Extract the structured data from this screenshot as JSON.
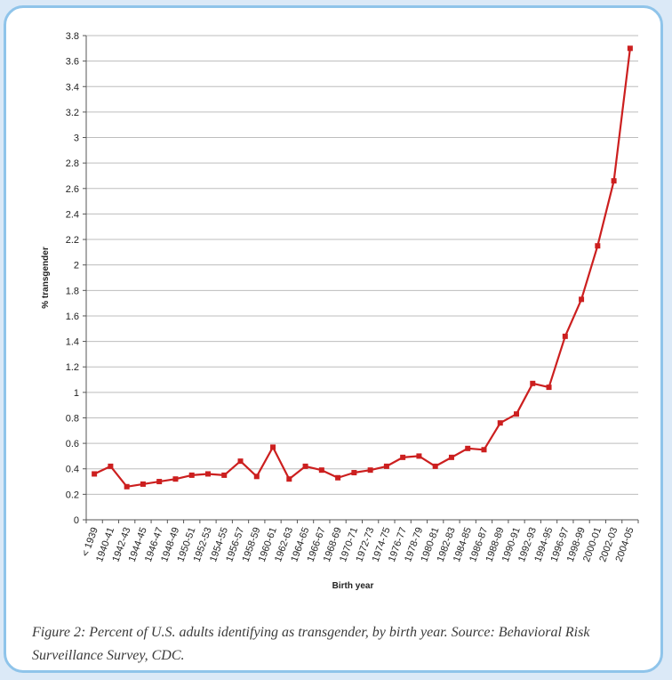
{
  "figure": {
    "caption": "Figure 2: Percent of U.S. adults identifying as transgender, by birth year. Source: Behavioral Risk Surveillance Survey, CDC."
  },
  "colors": {
    "series": "#cc1f1f",
    "grid": "#bdbdbd",
    "border": "#8fc4ea"
  },
  "chart_data": {
    "type": "line",
    "title": "",
    "xlabel": "Birth year",
    "ylabel": "% transgender",
    "ylim": [
      0,
      3.8
    ],
    "yticks": [
      0,
      0.2,
      0.4,
      0.6,
      0.8,
      1,
      1.2,
      1.4,
      1.6,
      1.8,
      2,
      2.2,
      2.4,
      2.6,
      2.8,
      3,
      3.2,
      3.4,
      3.6,
      3.8
    ],
    "grid": true,
    "legend": "none",
    "categories": [
      "< 1939",
      "1940-41",
      "1942-43",
      "1944-45",
      "1946-47",
      "1948-49",
      "1950-51",
      "1952-53",
      "1954-55",
      "1956-57",
      "1958-59",
      "1960-61",
      "1962-63",
      "1964-65",
      "1966-67",
      "1968-69",
      "1970-71",
      "1972-73",
      "1974-75",
      "1976-77",
      "1978-79",
      "1980-81",
      "1982-83",
      "1984-85",
      "1986-87",
      "1988-89",
      "1990-91",
      "1992-93",
      "1994-95",
      "1996-97",
      "1998-99",
      "2000-01",
      "2002-03",
      "2004-05"
    ],
    "series": [
      {
        "values": [
          0.36,
          0.42,
          0.26,
          0.28,
          0.3,
          0.32,
          0.35,
          0.36,
          0.35,
          0.46,
          0.34,
          0.57,
          0.32,
          0.42,
          0.39,
          0.33,
          0.37,
          0.39,
          0.42,
          0.49,
          0.5,
          0.42,
          0.49,
          0.56,
          0.55,
          0.76,
          0.83,
          1.07,
          1.04,
          1.44,
          1.73,
          2.15,
          2.66,
          3.7
        ]
      }
    ]
  }
}
